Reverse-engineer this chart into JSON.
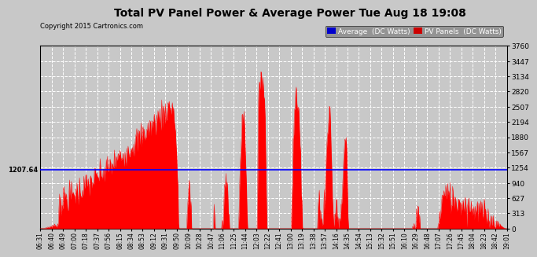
{
  "title": "Total PV Panel Power & Average Power Tue Aug 18 19:08",
  "copyright": "Copyright 2015 Cartronics.com",
  "average_value": 1207.64,
  "y_max": 3760.4,
  "y_min": 0.0,
  "y_ticks": [
    0.0,
    313.4,
    626.7,
    940.1,
    1253.5,
    1566.9,
    1880.2,
    2193.6,
    2507.0,
    2820.3,
    3133.7,
    3447.1,
    3760.4
  ],
  "bg_color": "#c8c8c8",
  "plot_bg_color": "#c8c8c8",
  "bar_color": "#ff0000",
  "avg_line_color": "#0000ff",
  "grid_color": "#ffffff",
  "title_color": "#000000",
  "legend_avg_bg": "#0000cd",
  "legend_pv_bg": "#cc0000",
  "x_tick_labels": [
    "06:31",
    "06:40",
    "06:49",
    "07:00",
    "07:18",
    "07:37",
    "07:56",
    "08:15",
    "08:34",
    "08:53",
    "09:12",
    "09:31",
    "09:50",
    "10:09",
    "10:28",
    "10:47",
    "11:06",
    "11:25",
    "11:44",
    "12:03",
    "12:22",
    "12:41",
    "13:00",
    "13:19",
    "13:38",
    "13:57",
    "14:16",
    "14:35",
    "14:54",
    "15:13",
    "15:32",
    "15:51",
    "16:10",
    "16:29",
    "16:48",
    "17:07",
    "17:26",
    "17:45",
    "18:04",
    "18:23",
    "18:42",
    "19:01"
  ]
}
